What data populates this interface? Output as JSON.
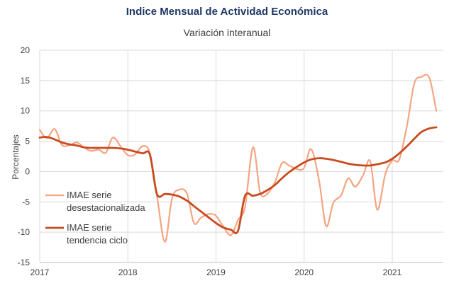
{
  "chart_data": {
    "type": "line",
    "title": "Indice Mensual de  Actividad Económica",
    "subtitle": "Variación interanual",
    "ylabel": "Porcentajes",
    "xlabel": "",
    "ylim": [
      -15,
      20
    ],
    "yticks": [
      -15,
      -10,
      -5,
      0,
      5,
      10,
      15,
      20
    ],
    "xlim": [
      2017.0,
      2021.58
    ],
    "xticks": [
      {
        "value": 2017,
        "label": "2017"
      },
      {
        "value": 2018,
        "label": "2018"
      },
      {
        "value": 2019,
        "label": "2019"
      },
      {
        "value": 2020,
        "label": "2020"
      },
      {
        "value": 2021,
        "label": "2021"
      }
    ],
    "grid": true,
    "legend_position": "lower-left",
    "series": [
      {
        "name": "IMAE serie desestacionalizada",
        "color": "#f4a582",
        "points": [
          [
            2017.0,
            6.9
          ],
          [
            2017.08,
            5.5
          ],
          [
            2017.17,
            7.0
          ],
          [
            2017.25,
            4.4
          ],
          [
            2017.33,
            4.3
          ],
          [
            2017.42,
            4.8
          ],
          [
            2017.5,
            4.0
          ],
          [
            2017.58,
            3.4
          ],
          [
            2017.67,
            3.6
          ],
          [
            2017.75,
            3.1
          ],
          [
            2017.83,
            5.6
          ],
          [
            2017.92,
            4.1
          ],
          [
            2018.0,
            2.7
          ],
          [
            2018.08,
            2.8
          ],
          [
            2018.17,
            4.2
          ],
          [
            2018.25,
            3.0
          ],
          [
            2018.33,
            -4.0
          ],
          [
            2018.42,
            -11.6
          ],
          [
            2018.5,
            -4.5
          ],
          [
            2018.58,
            -3.0
          ],
          [
            2018.67,
            -3.6
          ],
          [
            2018.75,
            -8.5
          ],
          [
            2018.83,
            -7.6
          ],
          [
            2018.92,
            -7.0
          ],
          [
            2019.0,
            -7.3
          ],
          [
            2019.08,
            -9.0
          ],
          [
            2019.17,
            -10.5
          ],
          [
            2019.25,
            -8.0
          ],
          [
            2019.33,
            -5.8
          ],
          [
            2019.42,
            4.0
          ],
          [
            2019.5,
            -3.4
          ],
          [
            2019.58,
            -3.7
          ],
          [
            2019.67,
            -1.7
          ],
          [
            2019.75,
            1.4
          ],
          [
            2019.83,
            1.0
          ],
          [
            2019.92,
            0.4
          ],
          [
            2020.0,
            0.6
          ],
          [
            2020.08,
            3.7
          ],
          [
            2020.17,
            -1.5
          ],
          [
            2020.25,
            -9.0
          ],
          [
            2020.33,
            -5.2
          ],
          [
            2020.42,
            -3.9
          ],
          [
            2020.5,
            -1.1
          ],
          [
            2020.58,
            -2.5
          ],
          [
            2020.67,
            -0.6
          ],
          [
            2020.75,
            1.7
          ],
          [
            2020.83,
            -6.3
          ],
          [
            2020.92,
            -0.5
          ],
          [
            2021.0,
            1.8
          ],
          [
            2021.08,
            2.0
          ],
          [
            2021.17,
            7.8
          ],
          [
            2021.25,
            14.5
          ],
          [
            2021.33,
            15.6
          ],
          [
            2021.42,
            15.5
          ],
          [
            2021.5,
            10.0
          ]
        ]
      },
      {
        "name": "IMAE serie tendencia ciclo",
        "color": "#c84b20",
        "points": [
          [
            2017.0,
            5.6
          ],
          [
            2017.08,
            5.7
          ],
          [
            2017.17,
            5.3
          ],
          [
            2017.25,
            4.8
          ],
          [
            2017.33,
            4.5
          ],
          [
            2017.42,
            4.3
          ],
          [
            2017.5,
            4.0
          ],
          [
            2017.58,
            3.9
          ],
          [
            2017.67,
            3.9
          ],
          [
            2017.75,
            3.9
          ],
          [
            2017.83,
            3.9
          ],
          [
            2017.92,
            3.8
          ],
          [
            2018.0,
            3.6
          ],
          [
            2018.08,
            3.3
          ],
          [
            2018.17,
            3.0
          ],
          [
            2018.25,
            2.8
          ],
          [
            2018.33,
            -3.7
          ],
          [
            2018.42,
            -3.7
          ],
          [
            2018.5,
            -3.8
          ],
          [
            2018.58,
            -4.1
          ],
          [
            2018.67,
            -4.8
          ],
          [
            2018.75,
            -5.7
          ],
          [
            2018.83,
            -6.6
          ],
          [
            2018.92,
            -7.6
          ],
          [
            2019.0,
            -8.5
          ],
          [
            2019.08,
            -9.2
          ],
          [
            2019.17,
            -9.6
          ],
          [
            2019.25,
            -9.8
          ],
          [
            2019.33,
            -4.0
          ],
          [
            2019.42,
            -4.0
          ],
          [
            2019.5,
            -3.7
          ],
          [
            2019.58,
            -3.1
          ],
          [
            2019.67,
            -2.2
          ],
          [
            2019.75,
            -1.1
          ],
          [
            2019.83,
            -0.1
          ],
          [
            2019.92,
            0.8
          ],
          [
            2020.0,
            1.5
          ],
          [
            2020.08,
            2.0
          ],
          [
            2020.17,
            2.2
          ],
          [
            2020.25,
            2.1
          ],
          [
            2020.33,
            1.9
          ],
          [
            2020.42,
            1.6
          ],
          [
            2020.5,
            1.3
          ],
          [
            2020.58,
            1.1
          ],
          [
            2020.67,
            1.0
          ],
          [
            2020.75,
            1.0
          ],
          [
            2020.83,
            1.2
          ],
          [
            2020.92,
            1.5
          ],
          [
            2021.0,
            2.1
          ],
          [
            2021.08,
            3.0
          ],
          [
            2021.17,
            4.2
          ],
          [
            2021.25,
            5.4
          ],
          [
            2021.33,
            6.5
          ],
          [
            2021.42,
            7.1
          ],
          [
            2021.5,
            7.3
          ]
        ]
      }
    ],
    "legend": [
      {
        "lines": [
          "IMAE serie",
          "desestacionalizada"
        ],
        "color": "#f4a582"
      },
      {
        "lines": [
          "IMAE serie",
          "tendencia ciclo"
        ],
        "color": "#c84b20"
      }
    ]
  }
}
